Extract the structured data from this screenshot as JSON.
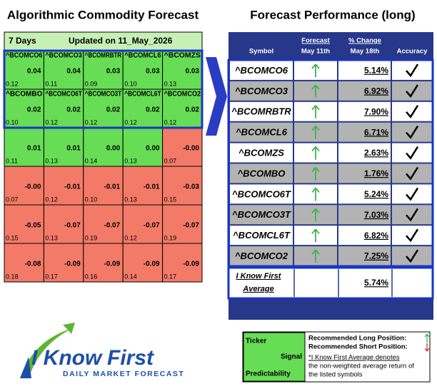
{
  "left": {
    "title": "Algorithmic Commodity Forecast",
    "header": {
      "period": "7 Days",
      "updated": "Updated on 11_May_2026"
    },
    "grid": [
      [
        {
          "name": "^BCOMCO6",
          "signal": "0.04",
          "predictability": "0.12"
        },
        {
          "name": "^BCOMCO3",
          "signal": "0.04",
          "predictability": "0.11"
        },
        {
          "name": "^BCOMRBTR",
          "signal": "0.03",
          "predictability": "0.09"
        },
        {
          "name": "^BCOMCL6",
          "signal": "0.03",
          "predictability": "0.10"
        },
        {
          "name": "^BCOMZS",
          "signal": "0.03",
          "predictability": "0.13"
        }
      ],
      [
        {
          "name": "^BCOMBO",
          "signal": "0.02",
          "predictability": "0.10"
        },
        {
          "name": "^BCOMCO6T",
          "signal": "0.02",
          "predictability": "0.12"
        },
        {
          "name": "^BCOMCO3T",
          "signal": "0.02",
          "predictability": "0.12"
        },
        {
          "name": "^BCOMCL6T",
          "signal": "0.02",
          "predictability": "0.12"
        },
        {
          "name": "^BCOMCO2",
          "signal": "0.02",
          "predictability": "0.12"
        }
      ],
      [
        {
          "signal": "0.01",
          "predictability": "0.11"
        },
        {
          "signal": "0.01",
          "predictability": "0.13"
        },
        {
          "signal": "0.00",
          "predictability": "0.14"
        },
        {
          "signal": "0.00",
          "predictability": "0.13"
        },
        {
          "signal": "-0.00",
          "predictability": "0.07"
        }
      ],
      [
        {
          "signal": "-0.00",
          "predictability": "0.07"
        },
        {
          "signal": "-0.01",
          "predictability": "0.12"
        },
        {
          "signal": "-0.01",
          "predictability": "0.10"
        },
        {
          "signal": "-0.01",
          "predictability": "0.13"
        },
        {
          "signal": "-0.03",
          "predictability": "0.15"
        }
      ],
      [
        {
          "signal": "-0.05",
          "predictability": "0.15"
        },
        {
          "signal": "-0.07",
          "predictability": "0.13"
        },
        {
          "signal": "-0.07",
          "predictability": "0.19"
        },
        {
          "signal": "-0.07",
          "predictability": "0.12"
        },
        {
          "signal": "-0.07",
          "predictability": "0.19"
        }
      ],
      [
        {
          "signal": "-0.08",
          "predictability": "0.18"
        },
        {
          "signal": "-0.09",
          "predictability": "0.17"
        },
        {
          "signal": "-0.09",
          "predictability": "0.16"
        },
        {
          "signal": "-0.09",
          "predictability": "0.14"
        },
        {
          "signal": "-0.09",
          "predictability": "0.17"
        }
      ]
    ]
  },
  "right": {
    "title": "Forecast Performance (long)",
    "columns": {
      "symbol": "Symbol",
      "forecast": "Forecast",
      "forecast_date": "May 11th",
      "change": "% Change",
      "change_date": "May 18th",
      "accuracy": "Accuracy"
    },
    "rows": [
      {
        "symbol": "^BCOMCO6",
        "change": "5.14%"
      },
      {
        "symbol": "^BCOMCO3",
        "change": "6.92%"
      },
      {
        "symbol": "^BCOMRBTR",
        "change": "7.90%"
      },
      {
        "symbol": "^BCOMCL6",
        "change": "6.71%"
      },
      {
        "symbol": "^BCOMZS",
        "change": "2.63%"
      },
      {
        "symbol": "^BCOMBO",
        "change": "1.76%"
      },
      {
        "symbol": "^BCOMCO6T",
        "change": "5.24%"
      },
      {
        "symbol": "^BCOMCO3T",
        "change": "7.03%"
      },
      {
        "symbol": "^BCOMCL6T",
        "change": "6.82%"
      },
      {
        "symbol": "^BCOMCO2",
        "change": "7.25%"
      }
    ],
    "average": {
      "label_lines": [
        "I Know First",
        "Average"
      ],
      "change": "5.74%"
    }
  },
  "legend": {
    "ticker": "Ticker",
    "signal": "Signal",
    "predictability": "Predictability",
    "long": "Recommended Long Position:",
    "short": "Recommended Short Position:",
    "note_lines": [
      "*I Know First Average denotes",
      "the non-weighted average return of",
      "the listed symbols"
    ]
  },
  "logo": {
    "name_a": "I Know",
    "name_b": "First",
    "tagline": "DAILY MARKET FORECAST"
  }
}
